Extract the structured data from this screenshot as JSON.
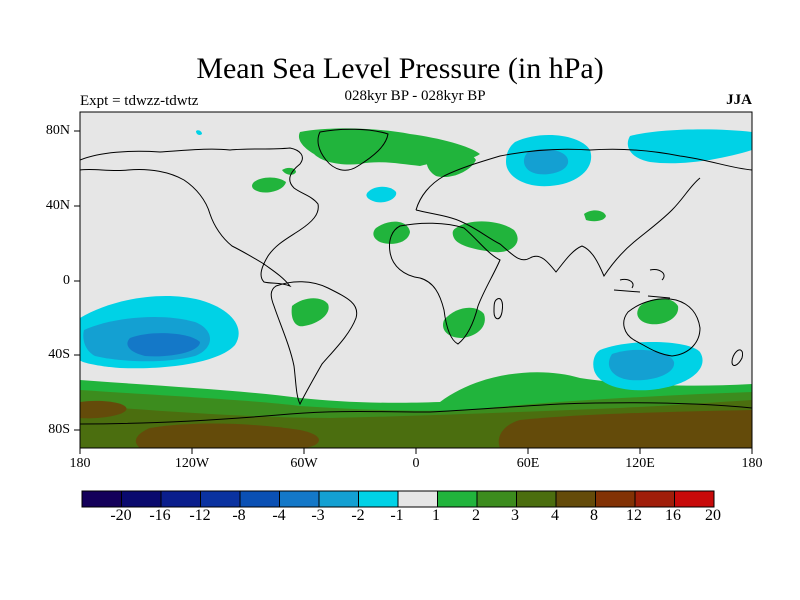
{
  "title": "Mean Sea Level Pressure (in hPa)",
  "subtitle": "028kyr BP - 028kyr BP",
  "left_label": "Expt = tdwzz-tdwtz",
  "right_label": "JJA",
  "lat_ticks": [
    "80N",
    "40N",
    "0",
    "40S",
    "80S"
  ],
  "lon_ticks": [
    "180",
    "120W",
    "60W",
    "0",
    "60E",
    "120E",
    "180"
  ],
  "colorbar": {
    "labels": [
      "-20",
      "-16",
      "-12",
      "-8",
      "-4",
      "-3",
      "-2",
      "-1",
      "1",
      "2",
      "3",
      "4",
      "8",
      "12",
      "16",
      "20"
    ],
    "colors": [
      "#14005a",
      "#0a0a6e",
      "#0a1e8c",
      "#0a32a0",
      "#0a50b4",
      "#1478c8",
      "#14a0d2",
      "#00d2e6",
      "#e6e6e6",
      "#21b43c",
      "#3c8c1e",
      "#4b6e0f",
      "#644b0a",
      "#823205",
      "#a01e0a",
      "#c80a0a"
    ]
  },
  "colors": {
    "background": "#e6e6e6",
    "cyan": "#00d2e6",
    "lightblue": "#14a0d2",
    "green": "#21b43c",
    "darkgreen": "#3c8c1e",
    "olive": "#4b6e0f",
    "brown": "#644b0a"
  }
}
